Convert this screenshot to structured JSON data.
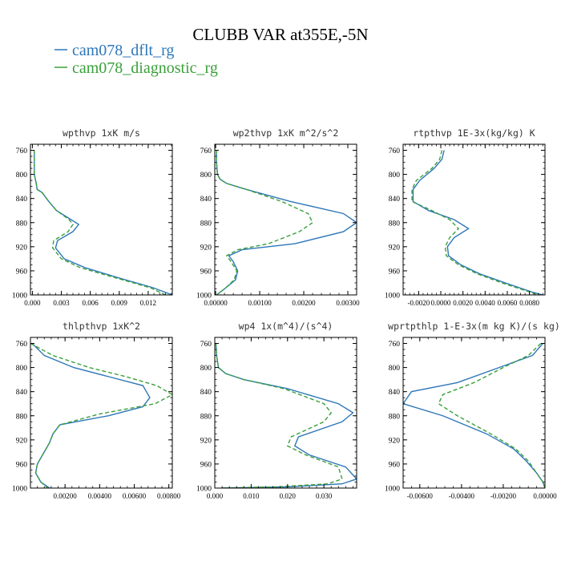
{
  "figure": {
    "title": "CLUBB VAR at355E,-5N",
    "legend": [
      {
        "label": "cam078_dflt_rg",
        "color": "#2e77b8",
        "dash": "solid"
      },
      {
        "label": "cam078_diagnostic_rg",
        "color": "#3aa03a",
        "dash": "dashed"
      }
    ]
  },
  "chart_data": [
    {
      "type": "line",
      "title": "wpthvp  1xK m/s",
      "xlim": [
        -0.0002,
        0.0145
      ],
      "ylim": [
        1000,
        750
      ],
      "xticks": [
        0.0,
        0.003,
        0.006,
        0.009,
        0.012
      ],
      "xtick_labels": [
        "0.000",
        "0.003",
        "0.006",
        "0.009",
        "0.012"
      ],
      "yticks": [
        760,
        800,
        840,
        880,
        920,
        960,
        1000
      ],
      "grid": false,
      "series": [
        {
          "name": "cam078_dflt_rg",
          "x": [
            0.0002,
            0.0002,
            0.0002,
            0.0004,
            0.0005,
            0.001,
            0.0017,
            0.0025,
            0.004,
            0.0048,
            0.0042,
            0.0026,
            0.0024,
            0.0033,
            0.0055,
            0.009,
            0.0125,
            0.0145
          ],
          "y": [
            760,
            780,
            800,
            815,
            825,
            830,
            845,
            860,
            875,
            883,
            895,
            910,
            922,
            940,
            955,
            972,
            988,
            1000
          ]
        },
        {
          "name": "cam078_diagnostic_rg",
          "x": [
            0.0002,
            0.0002,
            0.0002,
            0.0004,
            0.0005,
            0.001,
            0.0017,
            0.0025,
            0.0038,
            0.0042,
            0.0037,
            0.0022,
            0.0021,
            0.003,
            0.005,
            0.0087,
            0.0122,
            0.0138
          ],
          "y": [
            760,
            780,
            800,
            815,
            825,
            830,
            845,
            860,
            875,
            883,
            895,
            910,
            922,
            940,
            955,
            972,
            988,
            1000
          ]
        }
      ]
    },
    {
      "type": "line",
      "title": "wp2thvp  1xK m^2/s^2",
      "xlim": [
        -2e-05,
        0.0032
      ],
      "ylim": [
        1000,
        750
      ],
      "xticks": [
        0.0,
        0.001,
        0.002,
        0.003
      ],
      "xtick_labels": [
        "0.00000",
        "0.00100",
        "0.00200",
        "0.00300"
      ],
      "yticks": [
        760,
        800,
        840,
        880,
        920,
        960,
        1000
      ],
      "grid": false,
      "series": [
        {
          "name": "cam078_dflt_rg",
          "x": [
            2e-05,
            2e-05,
            4e-05,
            0.0001,
            0.00025,
            0.0007,
            0.0017,
            0.0029,
            0.0032,
            0.0029,
            0.0018,
            0.0006,
            0.0003,
            0.0004,
            0.0005,
            0.00045,
            0.0002,
            2e-05
          ],
          "y": [
            760,
            780,
            800,
            808,
            815,
            825,
            845,
            865,
            880,
            895,
            915,
            925,
            935,
            945,
            960,
            975,
            990,
            1000
          ]
        },
        {
          "name": "cam078_diagnostic_rg",
          "x": [
            2e-05,
            2e-05,
            4e-05,
            0.0001,
            0.00025,
            0.0007,
            0.0015,
            0.0021,
            0.0022,
            0.0019,
            0.0012,
            0.0005,
            0.00025,
            0.00035,
            0.00048,
            0.00042,
            0.0002,
            2e-05
          ],
          "y": [
            760,
            780,
            800,
            808,
            815,
            825,
            845,
            865,
            880,
            895,
            915,
            925,
            935,
            945,
            960,
            975,
            990,
            1000
          ]
        }
      ]
    },
    {
      "type": "line",
      "title": "rtpthvp  1E-3x(kg/kg) K",
      "xlim": [
        -0.0034,
        0.0094
      ],
      "ylim": [
        1000,
        750
      ],
      "xticks": [
        -0.002,
        0.0,
        0.002,
        0.004,
        0.006,
        0.008
      ],
      "xtick_labels": [
        "-0.0020",
        "0.0000",
        "0.0020",
        "0.0040",
        "0.0060",
        "0.0080"
      ],
      "yticks": [
        760,
        800,
        840,
        880,
        920,
        960,
        1000
      ],
      "grid": false,
      "series": [
        {
          "name": "cam078_dflt_rg",
          "x": [
            0.0003,
            0.0001,
            -0.0006,
            -0.0019,
            -0.0025,
            -0.0025,
            -0.0011,
            0.0012,
            0.0025,
            0.0012,
            0.0006,
            0.0007,
            0.0018,
            0.0035,
            0.0058,
            0.0082,
            0.0092
          ],
          "y": [
            760,
            775,
            790,
            810,
            825,
            845,
            860,
            875,
            890,
            905,
            920,
            935,
            950,
            965,
            980,
            995,
            1000
          ]
        },
        {
          "name": "cam078_diagnostic_rg",
          "x": [
            0.0001,
            -0.0001,
            -0.0008,
            -0.0022,
            -0.0026,
            -0.0026,
            -0.0008,
            0.0008,
            0.0016,
            0.0008,
            0.0004,
            0.0005,
            0.0016,
            0.0033,
            0.0055,
            0.008,
            0.0088
          ],
          "y": [
            760,
            775,
            790,
            810,
            825,
            845,
            860,
            875,
            890,
            905,
            920,
            935,
            950,
            965,
            980,
            995,
            1000
          ]
        }
      ]
    },
    {
      "type": "line",
      "title": "thlpthvp  1xK^2",
      "xlim": [
        0.0,
        0.0082
      ],
      "ylim": [
        1000,
        750
      ],
      "xticks": [
        0.002,
        0.004,
        0.006,
        0.008
      ],
      "xtick_labels": [
        "0.00200",
        "0.00400",
        "0.00600",
        "0.00800"
      ],
      "yticks": [
        760,
        800,
        840,
        880,
        920,
        960,
        1000
      ],
      "grid": false,
      "series": [
        {
          "name": "cam078_dflt_rg",
          "x": [
            0.0001,
            0.0008,
            0.0025,
            0.0045,
            0.0065,
            0.0069,
            0.0065,
            0.0045,
            0.0017,
            0.0013,
            0.0011,
            0.0007,
            0.0004,
            0.0003,
            0.0006,
            0.0011
          ],
          "y": [
            760,
            780,
            800,
            815,
            830,
            850,
            865,
            880,
            895,
            910,
            925,
            945,
            960,
            975,
            990,
            1000
          ]
        },
        {
          "name": "cam078_diagnostic_rg",
          "x": [
            0.0,
            0.0013,
            0.0034,
            0.0055,
            0.0073,
            0.0082,
            0.0072,
            0.004,
            0.0017,
            0.0013,
            0.0011,
            0.0007,
            0.0004,
            0.0003,
            0.0006,
            0.001
          ],
          "y": [
            760,
            780,
            800,
            815,
            830,
            845,
            860,
            877,
            895,
            910,
            925,
            945,
            960,
            975,
            990,
            1000
          ]
        }
      ]
    },
    {
      "type": "line",
      "title": "wp4  1x(m^4)/(s^4)",
      "xlim": [
        0.0,
        0.039
      ],
      "ylim": [
        1000,
        750
      ],
      "xticks": [
        0.0,
        0.01,
        0.02,
        0.03
      ],
      "xtick_labels": [
        "0.000",
        "0.010",
        "0.020",
        "0.030"
      ],
      "yticks": [
        760,
        800,
        840,
        880,
        920,
        960,
        1000
      ],
      "grid": false,
      "series": [
        {
          "name": "cam078_dflt_rg",
          "x": [
            0.0003,
            0.0005,
            0.001,
            0.003,
            0.008,
            0.02,
            0.034,
            0.038,
            0.035,
            0.023,
            0.022,
            0.026,
            0.036,
            0.039,
            0.035,
            0.02,
            0.002
          ],
          "y": [
            760,
            780,
            800,
            810,
            820,
            835,
            860,
            875,
            890,
            915,
            930,
            945,
            965,
            985,
            993,
            998,
            1000
          ]
        },
        {
          "name": "cam078_diagnostic_rg",
          "x": [
            0.0003,
            0.0005,
            0.001,
            0.003,
            0.008,
            0.019,
            0.03,
            0.032,
            0.03,
            0.021,
            0.02,
            0.025,
            0.034,
            0.035,
            0.031,
            0.017,
            0.001
          ],
          "y": [
            760,
            780,
            800,
            810,
            820,
            835,
            860,
            875,
            890,
            915,
            930,
            945,
            965,
            985,
            993,
            998,
            1000
          ]
        }
      ]
    },
    {
      "type": "line",
      "title": "wprtpthlp  1-E-3x(m kg K)/(s kg)",
      "xlim": [
        -0.0068,
        0.0
      ],
      "ylim": [
        1000,
        750
      ],
      "xticks": [
        -0.006,
        -0.004,
        -0.002,
        0.0
      ],
      "xtick_labels": [
        "-0.00600",
        "-0.00400",
        "-0.00200",
        "0.00000"
      ],
      "yticks": [
        760,
        800,
        840,
        880,
        920,
        960,
        1000
      ],
      "grid": false,
      "series": [
        {
          "name": "cam078_dflt_rg",
          "x": [
            -0.0001,
            -0.0006,
            -0.0022,
            -0.0042,
            -0.0064,
            -0.0068,
            -0.0049,
            -0.0028,
            -0.0015,
            -0.0009,
            -0.0004,
            -0.0001,
            0.0
          ],
          "y": [
            760,
            780,
            800,
            825,
            840,
            860,
            880,
            910,
            935,
            955,
            975,
            990,
            1000
          ]
        },
        {
          "name": "cam078_diagnostic_rg",
          "x": [
            -0.0002,
            -0.0008,
            -0.002,
            -0.0034,
            -0.0049,
            -0.0051,
            -0.0042,
            -0.0026,
            -0.0014,
            -0.0008,
            -0.0004,
            -0.0001,
            0.0
          ],
          "y": [
            760,
            780,
            800,
            825,
            845,
            860,
            880,
            910,
            935,
            955,
            975,
            990,
            1000
          ]
        }
      ]
    }
  ]
}
